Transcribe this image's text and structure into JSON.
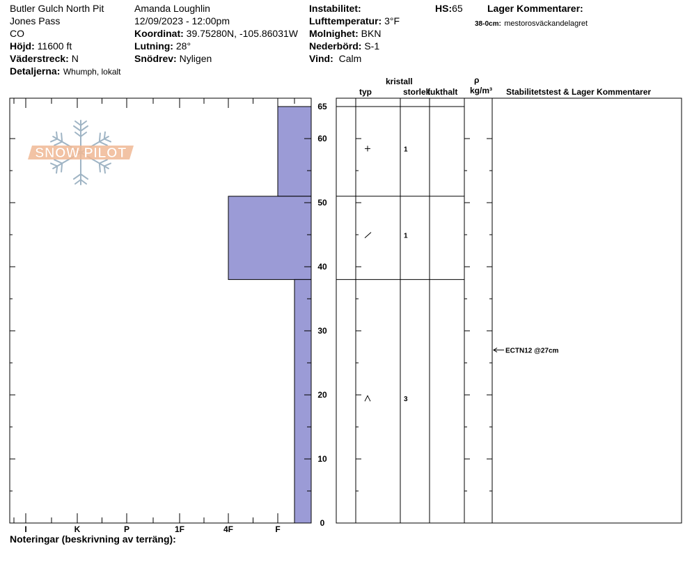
{
  "header": {
    "col1": {
      "site": "Butler Gulch North Pit",
      "area": "Jones Pass",
      "state": "CO",
      "elevation_label": "Höjd:",
      "elevation_value": "11600 ft",
      "aspect_label": "Väderstreck:",
      "aspect_value": "N",
      "details_label": "Detaljerna:",
      "details_value": "Whumph, lokalt"
    },
    "col2": {
      "observer": "Amanda Loughlin",
      "datetime": "12/09/2023 - 12:00pm",
      "coord_label": "Koordinat:",
      "coord_value": "39.75280N, -105.86031W",
      "slope_label": "Lutning:",
      "slope_value": "28°",
      "drift_label": "Snödrev:",
      "drift_value": "Nyligen"
    },
    "col3": {
      "instability_label": "Instabilitet:",
      "airtemp_label": "Lufttemperatur:",
      "airtemp_value": "3°F",
      "sky_label": "Molnighet:",
      "sky_value": "BKN",
      "precip_label": "Nederbörd:",
      "precip_value": "S-1",
      "wind_label": "Vind:",
      "wind_value": "Calm"
    },
    "hs_label": "HS:",
    "hs_value": "65",
    "layer_comments_label": "Lager Kommentarer:",
    "layer_comment_depth": "38-0cm:",
    "layer_comment_text": "mestorosväckandelagret"
  },
  "logo": {
    "text": "SNOW PILOT"
  },
  "table_headers": {
    "crystal": "kristall",
    "type": "typ",
    "size": "storlek",
    "moisture": "fukthalt",
    "rho": "ρ",
    "density_unit": "kg/m³",
    "stability": "Stabilitetstest & Lager Kommentarer"
  },
  "notes_label": "Noteringar (beskrivning av terräng):",
  "colors": {
    "layer_fill": "#9b9bd6",
    "logo_orange": "#f0b895",
    "logo_blue": "#9fb4c4"
  },
  "chart_data": {
    "type": "snow-profile",
    "hs": 65,
    "y_axis": {
      "min": 0,
      "max": 65,
      "ticks": [
        0,
        10,
        20,
        30,
        40,
        50,
        60,
        65
      ]
    },
    "hardness_scale": [
      "I",
      "K",
      "P",
      "1F",
      "4F",
      "F"
    ],
    "layers": [
      {
        "top": 65,
        "bottom": 51,
        "hardness": "F",
        "grain_icon": "plus-icon",
        "grain_size": "1"
      },
      {
        "top": 51,
        "bottom": 38,
        "hardness": "4F",
        "grain_icon": "slash-icon",
        "grain_size": "1"
      },
      {
        "top": 38,
        "bottom": 0,
        "hardness": "F-",
        "grain_icon": "caret-icon",
        "grain_size": "3"
      }
    ],
    "stability_tests": [
      {
        "depth": 27,
        "label": "ECTN12 @27cm"
      }
    ]
  }
}
